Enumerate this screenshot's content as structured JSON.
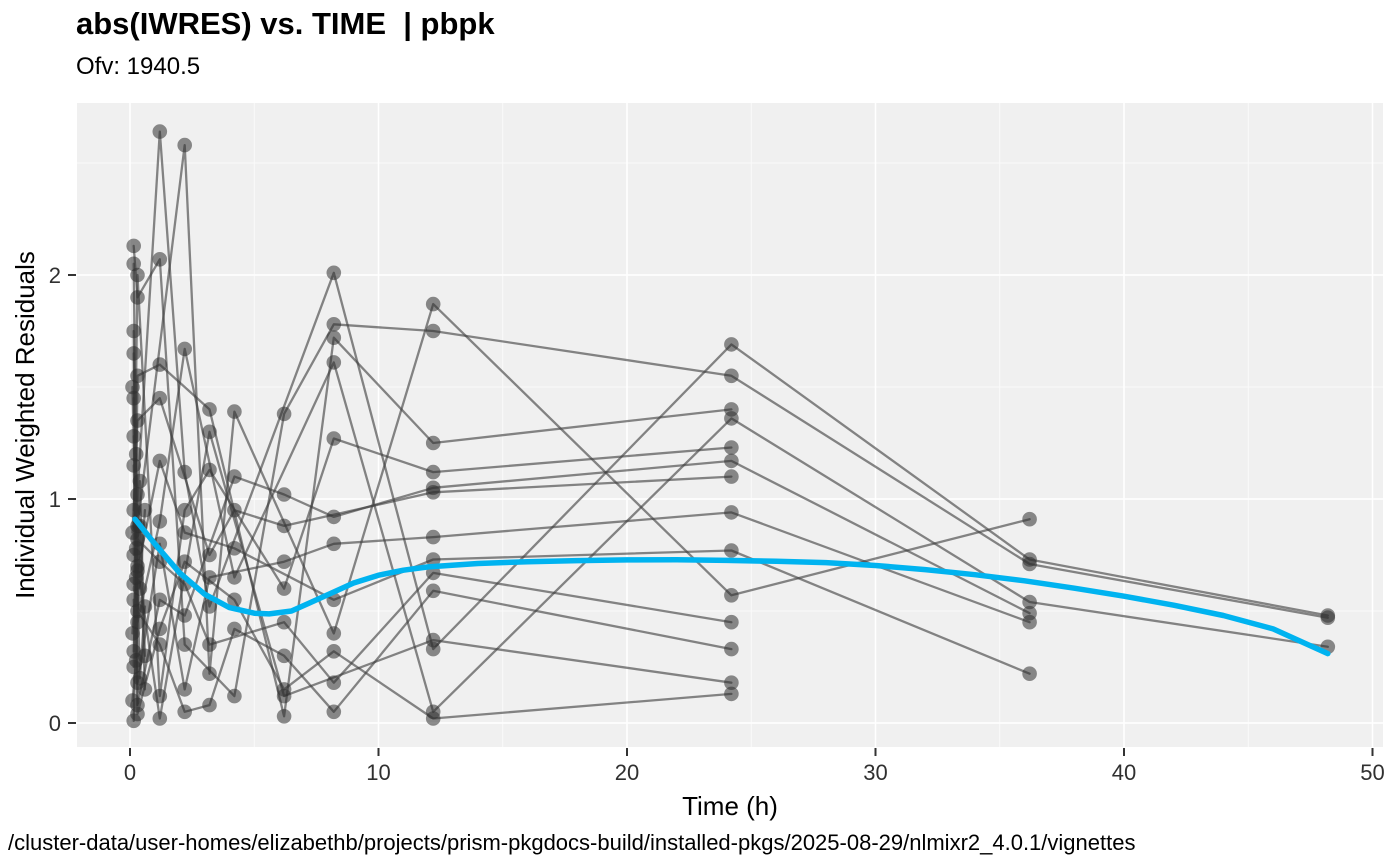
{
  "chart_data": {
    "type": "scatter+line",
    "description": "Individual trajectories of absolute individual weighted residuals versus time with a loess smooth, nlmixr2 goodness-of-fit plot",
    "title": "abs(IWRES) vs. TIME  | pbpk",
    "subtitle": "Ofv: 1940.5",
    "xlabel": "Time (h)",
    "ylabel": "Individual Weighted Residuals",
    "caption": "/cluster-data/user-homes/elizabethb/projects/prism-pkgdocs-build/installed-pkgs/2025-08-29/nlmixr2_4.0.1/vignettes",
    "x_ticks": [
      0,
      10,
      20,
      30,
      40,
      50
    ],
    "y_ticks": [
      0,
      1,
      2
    ],
    "x_minor_ticks": [
      5,
      15,
      25,
      35,
      45
    ],
    "y_minor_ticks": [
      0.5,
      1.5,
      2.5
    ],
    "xlim": [
      -2.1,
      50.5
    ],
    "ylim": [
      -0.11,
      2.77
    ],
    "grid": true,
    "legend_position": "none",
    "colors": {
      "points": "#2f2f2f",
      "lines": "#3f3f3f",
      "smooth": "#00b3f0",
      "panel_bg": "#f0f0f0",
      "grid_major": "#ffffff",
      "grid_minor": "#fafafa",
      "tick": "#333333"
    },
    "smooth": {
      "name": "loess-smooth",
      "points": [
        [
          0.2,
          0.91
        ],
        [
          1,
          0.8
        ],
        [
          2,
          0.67
        ],
        [
          3,
          0.575
        ],
        [
          4,
          0.515
        ],
        [
          5,
          0.49
        ],
        [
          5.6,
          0.487
        ],
        [
          6.5,
          0.5
        ],
        [
          7.2,
          0.535
        ],
        [
          8,
          0.575
        ],
        [
          9,
          0.625
        ],
        [
          10,
          0.66
        ],
        [
          11,
          0.682
        ],
        [
          12,
          0.697
        ],
        [
          14,
          0.712
        ],
        [
          16,
          0.72
        ],
        [
          18,
          0.725
        ],
        [
          20,
          0.728
        ],
        [
          22,
          0.729
        ],
        [
          24,
          0.726
        ],
        [
          26,
          0.722
        ],
        [
          28,
          0.716
        ],
        [
          30,
          0.703
        ],
        [
          32,
          0.685
        ],
        [
          34,
          0.662
        ],
        [
          36,
          0.635
        ],
        [
          38,
          0.602
        ],
        [
          40,
          0.566
        ],
        [
          42,
          0.526
        ],
        [
          44,
          0.48
        ],
        [
          46,
          0.42
        ],
        [
          48.2,
          0.31
        ]
      ]
    },
    "subjects": [
      {
        "id": "S1",
        "points": [
          [
            0.15,
            0.62
          ],
          [
            0.3,
            1.02
          ],
          [
            1.2,
            2.64
          ],
          [
            2.2,
            1.12
          ],
          [
            3.2,
            0.52
          ],
          [
            8.2,
            2.01
          ],
          [
            12.2,
            0.33
          ],
          [
            24.2,
            1.69
          ],
          [
            36.2,
            0.73
          ],
          [
            48.2,
            0.48
          ]
        ]
      },
      {
        "id": "S2",
        "points": [
          [
            0.15,
            1.45
          ],
          [
            0.3,
            0.88
          ],
          [
            2.2,
            2.58
          ],
          [
            3.2,
            0.22
          ],
          [
            4.2,
            1.39
          ],
          [
            8.2,
            0.4
          ],
          [
            12.2,
            1.87
          ],
          [
            24.2,
            0.57
          ],
          [
            36.2,
            0.91
          ]
        ]
      },
      {
        "id": "S3",
        "points": [
          [
            0.15,
            2.13
          ],
          [
            0.3,
            1.9
          ],
          [
            1.2,
            2.07
          ],
          [
            2.2,
            0.35
          ],
          [
            4.2,
            0.12
          ],
          [
            6.2,
            1.38
          ],
          [
            8.2,
            1.78
          ],
          [
            12.2,
            1.75
          ],
          [
            24.2,
            1.55
          ],
          [
            36.2,
            0.71
          ],
          [
            48.2,
            0.47
          ]
        ]
      },
      {
        "id": "S4",
        "points": [
          [
            0.15,
            0.25
          ],
          [
            0.3,
            1.55
          ],
          [
            1.2,
            1.6
          ],
          [
            3.2,
            1.4
          ],
          [
            6.2,
            0.03
          ],
          [
            8.2,
            1.72
          ],
          [
            12.2,
            1.25
          ],
          [
            24.2,
            1.4
          ]
        ]
      },
      {
        "id": "S5",
        "points": [
          [
            0.15,
            1.15
          ],
          [
            0.3,
            0.45
          ],
          [
            1.2,
            0.9
          ],
          [
            2.2,
            1.67
          ],
          [
            4.2,
            0.65
          ],
          [
            8.2,
            1.61
          ],
          [
            12.2,
            0.05
          ],
          [
            24.2,
            1.36
          ],
          [
            36.2,
            0.54
          ],
          [
            48.2,
            0.34
          ]
        ]
      },
      {
        "id": "S6",
        "points": [
          [
            0.15,
            0.75
          ],
          [
            0.3,
            2.0
          ],
          [
            1.2,
            0.12
          ],
          [
            2.2,
            0.95
          ],
          [
            3.2,
            1.13
          ],
          [
            6.2,
            0.6
          ],
          [
            8.2,
            1.27
          ],
          [
            12.2,
            1.12
          ],
          [
            24.2,
            1.23
          ]
        ]
      },
      {
        "id": "S7",
        "points": [
          [
            0.15,
            1.75
          ],
          [
            0.3,
            0.08
          ],
          [
            1.2,
            0.55
          ],
          [
            2.2,
            0.48
          ],
          [
            4.2,
            1.1
          ],
          [
            6.2,
            1.02
          ],
          [
            8.2,
            0.92
          ],
          [
            12.2,
            1.05
          ],
          [
            24.2,
            1.17
          ],
          [
            36.2,
            0.49
          ]
        ]
      },
      {
        "id": "S8",
        "points": [
          [
            0.15,
            0.95
          ],
          [
            0.3,
            1.35
          ],
          [
            1.2,
            1.45
          ],
          [
            3.2,
            0.75
          ],
          [
            4.2,
            0.95
          ],
          [
            6.2,
            0.88
          ],
          [
            12.2,
            1.03
          ],
          [
            24.2,
            1.1
          ]
        ]
      },
      {
        "id": "S9",
        "points": [
          [
            0.15,
            0.55
          ],
          [
            0.3,
            0.18
          ],
          [
            1.2,
            0.8
          ],
          [
            2.2,
            0.15
          ],
          [
            3.2,
            0.65
          ],
          [
            6.2,
            0.72
          ],
          [
            8.2,
            0.8
          ],
          [
            12.2,
            0.83
          ],
          [
            24.2,
            0.94
          ],
          [
            36.2,
            0.45
          ]
        ]
      },
      {
        "id": "S10",
        "points": [
          [
            0.15,
            1.28
          ],
          [
            0.3,
            0.68
          ],
          [
            1.2,
            1.17
          ],
          [
            2.2,
            0.85
          ],
          [
            4.2,
            0.78
          ],
          [
            8.2,
            0.55
          ],
          [
            12.2,
            0.73
          ],
          [
            24.2,
            0.77
          ],
          [
            36.2,
            0.22
          ]
        ]
      },
      {
        "id": "S11",
        "points": [
          [
            0.15,
            0.32
          ],
          [
            0.3,
            0.82
          ],
          [
            1.2,
            0.72
          ],
          [
            2.2,
            0.62
          ],
          [
            3.2,
            0.35
          ],
          [
            6.2,
            0.45
          ],
          [
            8.2,
            0.18
          ],
          [
            12.2,
            0.67
          ],
          [
            24.2,
            0.45
          ]
        ]
      },
      {
        "id": "S12",
        "points": [
          [
            0.15,
            2.05
          ],
          [
            0.3,
            0.5
          ],
          [
            1.2,
            0.35
          ],
          [
            2.2,
            0.05
          ],
          [
            3.2,
            0.08
          ],
          [
            4.2,
            0.42
          ],
          [
            6.2,
            0.3
          ],
          [
            8.2,
            0.05
          ],
          [
            12.2,
            0.59
          ],
          [
            24.2,
            0.33
          ]
        ]
      },
      {
        "id": "S13",
        "points": [
          [
            0.15,
            0.01
          ],
          [
            0.3,
            0.7
          ],
          [
            1.2,
            0.02
          ],
          [
            3.2,
            1.3
          ],
          [
            6.2,
            0.12
          ],
          [
            12.2,
            0.37
          ],
          [
            24.2,
            0.18
          ]
        ]
      },
      {
        "id": "S14",
        "points": [
          [
            0.15,
            1.65
          ],
          [
            0.3,
            0.04
          ],
          [
            1.2,
            0.42
          ],
          [
            2.2,
            0.72
          ],
          [
            4.2,
            0.55
          ],
          [
            6.2,
            0.15
          ],
          [
            8.2,
            0.32
          ],
          [
            12.2,
            0.02
          ],
          [
            24.2,
            0.13
          ]
        ]
      },
      {
        "id": "S15",
        "points": [
          [
            0.1,
            0.85
          ],
          [
            0.25,
            1.2
          ],
          [
            0.4,
            0.6
          ],
          [
            0.6,
            0.95
          ]
        ]
      },
      {
        "id": "S16",
        "points": [
          [
            0.1,
            0.4
          ],
          [
            0.25,
            0.65
          ],
          [
            0.4,
            1.08
          ],
          [
            0.6,
            0.3
          ]
        ]
      },
      {
        "id": "S17",
        "points": [
          [
            0.1,
            1.5
          ],
          [
            0.25,
            0.78
          ],
          [
            0.4,
            0.2
          ],
          [
            0.6,
            0.52
          ]
        ]
      },
      {
        "id": "S18",
        "points": [
          [
            0.1,
            0.1
          ],
          [
            0.25,
            0.28
          ],
          [
            0.4,
            0.88
          ],
          [
            0.6,
            0.15
          ]
        ]
      }
    ]
  }
}
